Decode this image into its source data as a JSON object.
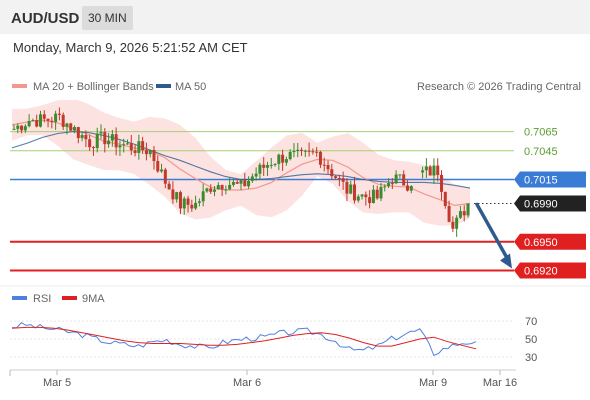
{
  "header": {
    "symbol": "AUD/USD",
    "timeframe": "30 MIN",
    "datetime": "Monday, March 9, 2026 5:21:52 AM CET"
  },
  "legend": {
    "bollinger": "MA 20 + Bollinger Bands",
    "ma50": "MA 50",
    "credit": "Research © 2026 Trading Central",
    "rsi": "RSI",
    "rsi_ma": "9MA"
  },
  "colors": {
    "bollinger": "#f4978e",
    "ma50": "#2e5b8f",
    "resistance": "#a5cf73",
    "pivot": "#3a7bd5",
    "support": "#e02020",
    "candle_up": "#3b8a2e",
    "candle_down": "#c0392b",
    "rsi": "#4f7fe0",
    "rsi_ma": "#e02020",
    "arrow": "#2e5b8f"
  },
  "chart_data": [
    {
      "type": "line",
      "title": "AUD/USD 30 MIN",
      "ylim": [
        0.6908,
        0.7098
      ],
      "x_ticks": [
        "Mar 5",
        "Mar 6",
        "Mar 9",
        "Mar 16"
      ],
      "levels": [
        {
          "label": "0.7065",
          "value": 0.7065,
          "kind": "resistance"
        },
        {
          "label": "0.7045",
          "value": 0.7045,
          "kind": "resistance"
        },
        {
          "label": "0.7015",
          "value": 0.7015,
          "kind": "pivot"
        },
        {
          "label": "0.6990",
          "value": 0.699,
          "kind": "last"
        },
        {
          "label": "0.6950",
          "value": 0.695,
          "kind": "support"
        },
        {
          "label": "0.6920",
          "value": 0.692,
          "kind": "support"
        }
      ],
      "forecast_arrow": {
        "from": 0.699,
        "to": 0.692
      },
      "series": [
        {
          "name": "MA 20 + Bollinger Bands",
          "values": [
            0.7072,
            0.7075,
            0.7077,
            0.7074,
            0.7068,
            0.7062,
            0.7055,
            0.7052,
            0.7048,
            0.7045,
            0.7038,
            0.7026,
            0.7016,
            0.7007,
            0.7004,
            0.7004,
            0.7006,
            0.7012,
            0.7022,
            0.7031,
            0.7036,
            0.7035,
            0.7028,
            0.7017,
            0.701,
            0.7008,
            0.7007,
            0.7,
            0.6994,
            0.6988,
            0.699
          ]
        },
        {
          "name": "MA 50",
          "values": [
            0.7048,
            0.7053,
            0.7059,
            0.7063,
            0.7065,
            0.7064,
            0.7061,
            0.7057,
            0.7052,
            0.7046,
            0.704,
            0.7035,
            0.7029,
            0.7023,
            0.7018,
            0.7015,
            0.7015,
            0.7016,
            0.7018,
            0.702,
            0.7021,
            0.702,
            0.7018,
            0.7015,
            0.7013,
            0.7012,
            0.7012,
            0.7012,
            0.7011,
            0.7009,
            0.7006
          ]
        },
        {
          "name": "Close",
          "values": [
            0.7068,
            0.7077,
            0.7077,
            0.708,
            0.7067,
            0.7054,
            0.7058,
            0.7052,
            0.7048,
            0.7045,
            0.7013,
            0.6989,
            0.6989,
            0.7008,
            0.7012,
            0.7007,
            0.7022,
            0.7034,
            0.704,
            0.7038,
            0.7043,
            0.7023,
            0.7004,
            0.6998,
            0.6996,
            0.7017,
            0.7011,
            0.7022,
            0.7025,
            0.6963,
            0.699
          ]
        }
      ]
    },
    {
      "type": "line",
      "title": "RSI",
      "ylim": [
        22,
        78
      ],
      "y_ticks": [
        70,
        50,
        30
      ],
      "series": [
        {
          "name": "RSI",
          "values": [
            64,
            66,
            63,
            61,
            58,
            55,
            50,
            46,
            44,
            42,
            47,
            49,
            44,
            42,
            40,
            46,
            49,
            51,
            52,
            56,
            58,
            59,
            55,
            48,
            38,
            37,
            42,
            50,
            56,
            60,
            34,
            41,
            46,
            47
          ]
        },
        {
          "name": "9MA",
          "values": [
            62,
            63,
            63,
            62,
            60,
            57,
            54,
            51,
            48,
            46,
            45,
            45,
            45,
            44,
            43,
            43,
            44,
            46,
            48,
            51,
            54,
            56,
            57,
            55,
            51,
            46,
            42,
            42,
            46,
            50,
            52,
            47,
            43,
            39
          ]
        }
      ]
    }
  ]
}
